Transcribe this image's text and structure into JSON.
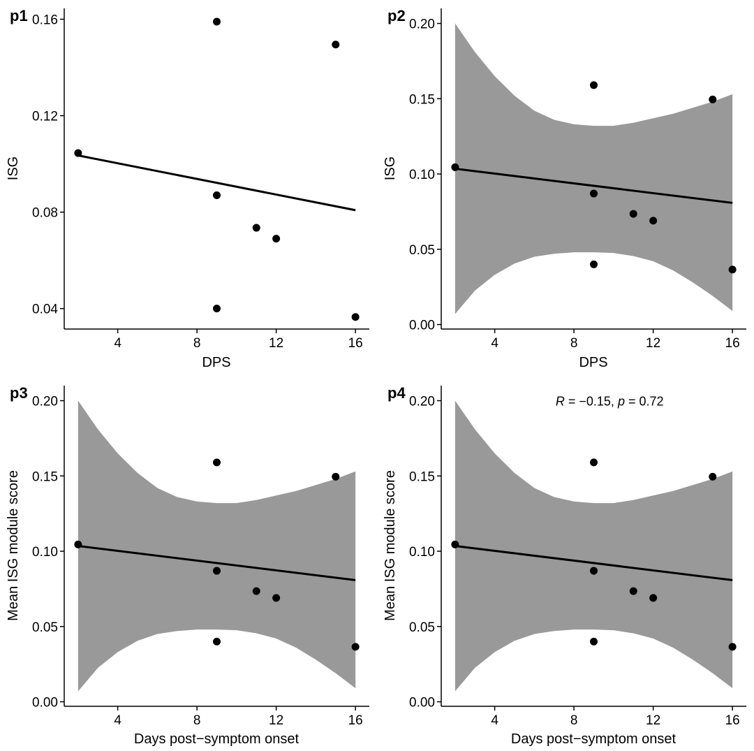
{
  "chart_data": [
    {
      "type": "scatter",
      "panel_tag": "p1",
      "title": "",
      "xlabel": "DPS",
      "ylabel": "ISG",
      "xlim": [
        1.3,
        16.7
      ],
      "ylim": [
        0.0315,
        0.1645
      ],
      "xticks": [
        4,
        8,
        12,
        16
      ],
      "xtick_labels": [
        "4",
        "8",
        "12",
        "16"
      ],
      "yticks": [
        0.04,
        0.08,
        0.12,
        0.16
      ],
      "ytick_labels": [
        "0.04",
        "0.08",
        "0.12",
        "0.16"
      ],
      "points": {
        "x": [
          2,
          9,
          9,
          9,
          11,
          12,
          15,
          16
        ],
        "y": [
          0.1045,
          0.159,
          0.087,
          0.04,
          0.0735,
          0.069,
          0.1495,
          0.0365
        ]
      },
      "fit_line": {
        "x": [
          2,
          16
        ],
        "y": [
          0.1035,
          0.0808
        ]
      },
      "confidence_band": null,
      "annotation": null
    },
    {
      "type": "scatter",
      "panel_tag": "p2",
      "title": "",
      "xlabel": "DPS",
      "ylabel": "ISG",
      "xlim": [
        1.3,
        16.7
      ],
      "ylim": [
        -0.003,
        0.21
      ],
      "xticks": [
        4,
        8,
        12,
        16
      ],
      "xtick_labels": [
        "4",
        "8",
        "12",
        "16"
      ],
      "yticks": [
        0.0,
        0.05,
        0.1,
        0.15,
        0.2
      ],
      "ytick_labels": [
        "0.00",
        "0.05",
        "0.10",
        "0.15",
        "0.20"
      ],
      "points": {
        "x": [
          2,
          9,
          9,
          9,
          11,
          12,
          15,
          16
        ],
        "y": [
          0.1045,
          0.159,
          0.087,
          0.04,
          0.0735,
          0.069,
          0.1495,
          0.0365
        ]
      },
      "fit_line": {
        "x": [
          2,
          16
        ],
        "y": [
          0.1035,
          0.0808
        ]
      },
      "confidence_band": {
        "x": [
          2,
          3,
          4,
          5,
          6,
          7,
          8,
          9,
          10,
          11,
          12,
          13,
          14,
          15,
          16
        ],
        "upper": [
          0.2,
          0.181,
          0.165,
          0.152,
          0.142,
          0.136,
          0.133,
          0.132,
          0.132,
          0.134,
          0.137,
          0.14,
          0.144,
          0.148,
          0.153
        ],
        "lower": [
          0.007,
          0.0225,
          0.033,
          0.0405,
          0.045,
          0.047,
          0.048,
          0.048,
          0.0475,
          0.0455,
          0.042,
          0.036,
          0.028,
          0.019,
          0.009
        ]
      },
      "annotation": null
    },
    {
      "type": "scatter",
      "panel_tag": "p3",
      "title": "",
      "xlabel": "Days post−symptom onset",
      "ylabel": "Mean ISG module score",
      "xlim": [
        1.3,
        16.7
      ],
      "ylim": [
        -0.003,
        0.21
      ],
      "xticks": [
        4,
        8,
        12,
        16
      ],
      "xtick_labels": [
        "4",
        "8",
        "12",
        "16"
      ],
      "yticks": [
        0.0,
        0.05,
        0.1,
        0.15,
        0.2
      ],
      "ytick_labels": [
        "0.00",
        "0.05",
        "0.10",
        "0.15",
        "0.20"
      ],
      "points": {
        "x": [
          2,
          9,
          9,
          9,
          11,
          12,
          15,
          16
        ],
        "y": [
          0.1045,
          0.159,
          0.087,
          0.04,
          0.0735,
          0.069,
          0.1495,
          0.0365
        ]
      },
      "fit_line": {
        "x": [
          2,
          16
        ],
        "y": [
          0.1035,
          0.0808
        ]
      },
      "confidence_band": {
        "x": [
          2,
          3,
          4,
          5,
          6,
          7,
          8,
          9,
          10,
          11,
          12,
          13,
          14,
          15,
          16
        ],
        "upper": [
          0.2,
          0.181,
          0.165,
          0.152,
          0.142,
          0.136,
          0.133,
          0.132,
          0.132,
          0.134,
          0.137,
          0.14,
          0.144,
          0.148,
          0.153
        ],
        "lower": [
          0.007,
          0.0225,
          0.033,
          0.0405,
          0.045,
          0.047,
          0.048,
          0.048,
          0.0475,
          0.0455,
          0.042,
          0.036,
          0.028,
          0.019,
          0.009
        ]
      },
      "annotation": null
    },
    {
      "type": "scatter",
      "panel_tag": "p4",
      "title": "",
      "xlabel": "Days post−symptom onset",
      "ylabel": "Mean ISG module score",
      "xlim": [
        1.3,
        16.7
      ],
      "ylim": [
        -0.003,
        0.21
      ],
      "xticks": [
        4,
        8,
        12,
        16
      ],
      "xtick_labels": [
        "4",
        "8",
        "12",
        "16"
      ],
      "yticks": [
        0.0,
        0.05,
        0.1,
        0.15,
        0.2
      ],
      "ytick_labels": [
        "0.00",
        "0.05",
        "0.10",
        "0.15",
        "0.20"
      ],
      "points": {
        "x": [
          2,
          9,
          9,
          9,
          11,
          12,
          15,
          16
        ],
        "y": [
          0.1045,
          0.159,
          0.087,
          0.04,
          0.0735,
          0.069,
          0.1495,
          0.0365
        ]
      },
      "fit_line": {
        "x": [
          2,
          16
        ],
        "y": [
          0.1035,
          0.0808
        ]
      },
      "confidence_band": {
        "x": [
          2,
          3,
          4,
          5,
          6,
          7,
          8,
          9,
          10,
          11,
          12,
          13,
          14,
          15,
          16
        ],
        "upper": [
          0.2,
          0.181,
          0.165,
          0.152,
          0.142,
          0.136,
          0.133,
          0.132,
          0.132,
          0.134,
          0.137,
          0.14,
          0.144,
          0.148,
          0.153
        ],
        "lower": [
          0.007,
          0.0225,
          0.033,
          0.0405,
          0.045,
          0.047,
          0.048,
          0.048,
          0.0475,
          0.0455,
          0.042,
          0.036,
          0.028,
          0.019,
          0.009
        ]
      },
      "annotation": {
        "r_symbol": "R",
        "r_value": " = −0.15, ",
        "p_symbol": "p",
        "p_value": " = 0.72",
        "x": 9.8,
        "y": 0.2
      }
    }
  ],
  "colors": {
    "point": "#000000",
    "line": "#000000",
    "band": "#999999",
    "axis": "#000000",
    "text": "#000000"
  }
}
